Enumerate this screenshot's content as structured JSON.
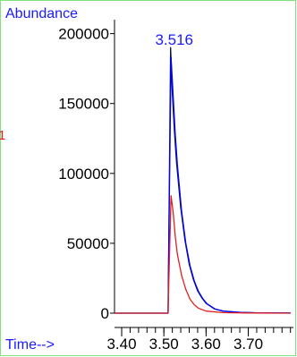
{
  "chart_data": {
    "type": "line",
    "ylabel": "Abundance",
    "xlabel": "Time-->",
    "side_marker": "1",
    "peak_label": "3.516",
    "xlim": [
      3.383,
      3.807
    ],
    "ylim": [
      0,
      210000
    ],
    "yticks": [
      0,
      50000,
      100000,
      150000,
      200000
    ],
    "xticks": [
      3.4,
      3.5,
      3.6,
      3.7
    ],
    "xtick_labels": [
      "3.40",
      "3.50",
      "3.60",
      "3.70"
    ],
    "minor_xtick_step": 0.02,
    "series": [
      {
        "color": "#0b1a3a",
        "points": [
          [
            3.383,
            0
          ],
          [
            3.51,
            0
          ],
          [
            3.512,
            60000
          ],
          [
            3.516,
            190000
          ],
          [
            3.52,
            158000
          ],
          [
            3.525,
            130000
          ],
          [
            3.53,
            108000
          ],
          [
            3.54,
            75000
          ],
          [
            3.55,
            52000
          ],
          [
            3.56,
            35000
          ],
          [
            3.57,
            24000
          ],
          [
            3.58,
            16000
          ],
          [
            3.59,
            11000
          ],
          [
            3.6,
            7000
          ],
          [
            3.62,
            3000
          ],
          [
            3.64,
            1500
          ],
          [
            3.68,
            500
          ],
          [
            3.72,
            200
          ],
          [
            3.8,
            100
          ]
        ]
      },
      {
        "color": "#0000ff",
        "points": [
          [
            3.383,
            0
          ],
          [
            3.51,
            0
          ],
          [
            3.512,
            55000
          ],
          [
            3.517,
            183000
          ],
          [
            3.522,
            155000
          ],
          [
            3.527,
            128000
          ],
          [
            3.532,
            106000
          ],
          [
            3.542,
            73000
          ],
          [
            3.552,
            50000
          ],
          [
            3.562,
            34000
          ],
          [
            3.572,
            23000
          ],
          [
            3.582,
            15500
          ],
          [
            3.592,
            10500
          ],
          [
            3.602,
            6800
          ],
          [
            3.622,
            2900
          ],
          [
            3.642,
            1400
          ],
          [
            3.682,
            500
          ],
          [
            3.722,
            200
          ],
          [
            3.8,
            100
          ]
        ]
      },
      {
        "color": "#e02020",
        "points": [
          [
            3.383,
            0
          ],
          [
            3.51,
            0
          ],
          [
            3.512,
            25000
          ],
          [
            3.517,
            84000
          ],
          [
            3.522,
            72000
          ],
          [
            3.527,
            55000
          ],
          [
            3.532,
            42000
          ],
          [
            3.542,
            27000
          ],
          [
            3.552,
            17000
          ],
          [
            3.562,
            10000
          ],
          [
            3.572,
            6000
          ],
          [
            3.582,
            3500
          ],
          [
            3.6,
            1500
          ],
          [
            3.64,
            400
          ],
          [
            3.7,
            100
          ],
          [
            3.8,
            0
          ]
        ]
      }
    ]
  }
}
